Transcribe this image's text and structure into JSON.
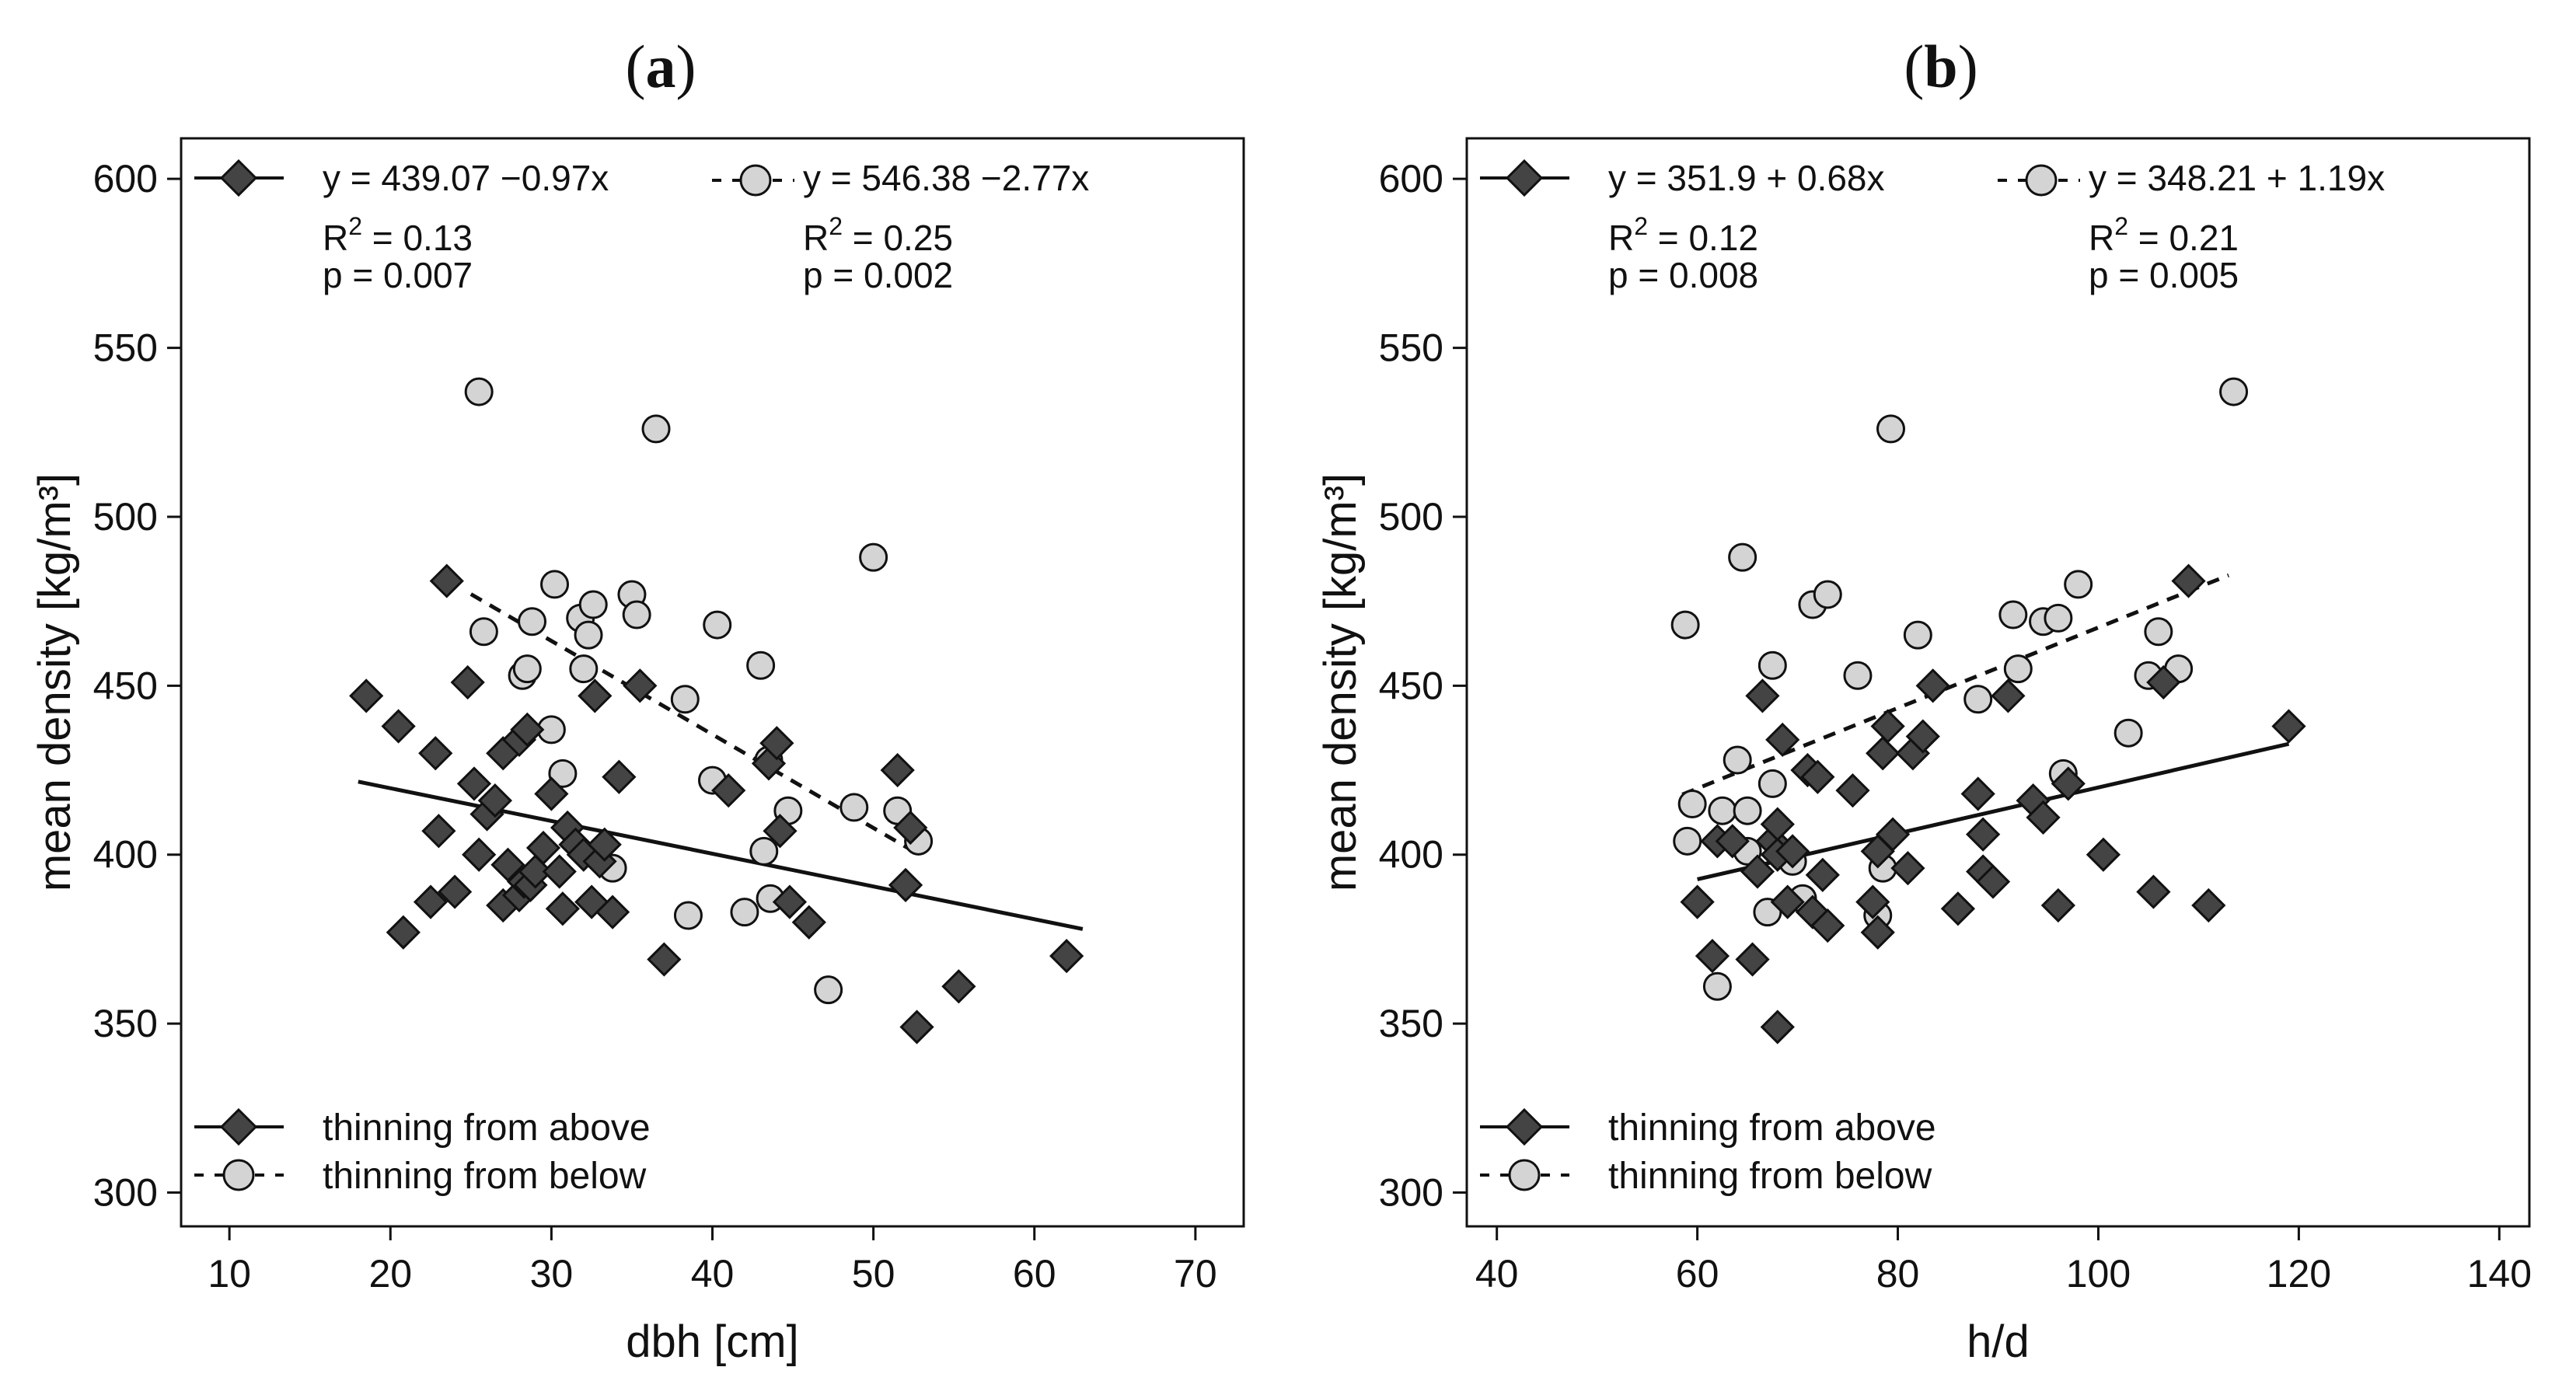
{
  "colors": {
    "above_fill": "#444444",
    "below_fill": "#d4d4d4",
    "stroke": "#111111"
  },
  "chart_data": [
    {
      "type": "scatter",
      "panel_label": "(a)",
      "panel_letter": "a",
      "title": "",
      "xlabel": "dbh [cm]",
      "ylabel": "mean density [kg/m³]",
      "xlim": [
        7,
        73
      ],
      "ylim": [
        290,
        612
      ],
      "xticks": [
        10,
        20,
        30,
        40,
        50,
        60,
        70
      ],
      "yticks": [
        300,
        350,
        400,
        450,
        500,
        550,
        600
      ],
      "legend_position": "bottom-left",
      "series": [
        {
          "name": "thinning from above",
          "legend_label": "thinning from above",
          "marker": "diamond",
          "equation": "y = 439.07 −0.97x",
          "r2_value": "0.13",
          "p_text": "p = 0.007",
          "fit": {
            "x": [
              18,
              63
            ],
            "y": [
              421.6,
              378.0
            ]
          },
          "points": [
            [
              18.5,
              447
            ],
            [
              20.5,
              438
            ],
            [
              20.8,
              377
            ],
            [
              22.5,
              386
            ],
            [
              22.8,
              430
            ],
            [
              23,
              407
            ],
            [
              23.5,
              481
            ],
            [
              24,
              389
            ],
            [
              24.8,
              451
            ],
            [
              25.2,
              421
            ],
            [
              25.5,
              400
            ],
            [
              26,
              412
            ],
            [
              26.5,
              416
            ],
            [
              27,
              385
            ],
            [
              27,
              430
            ],
            [
              27.3,
              397
            ],
            [
              28,
              434
            ],
            [
              28,
              388
            ],
            [
              28.3,
              392
            ],
            [
              28.5,
              437
            ],
            [
              28.7,
              391
            ],
            [
              29,
              395
            ],
            [
              29.5,
              402
            ],
            [
              30,
              418
            ],
            [
              30.5,
              395
            ],
            [
              30.7,
              384
            ],
            [
              31,
              408
            ],
            [
              31.5,
              403
            ],
            [
              32,
              400
            ],
            [
              32.5,
              386
            ],
            [
              32.7,
              447
            ],
            [
              33,
              398
            ],
            [
              33.3,
              403
            ],
            [
              33.8,
              383
            ],
            [
              34.2,
              423
            ],
            [
              35.5,
              450
            ],
            [
              37,
              369
            ],
            [
              41,
              419
            ],
            [
              43.5,
              427
            ],
            [
              44,
              433
            ],
            [
              44.2,
              407
            ],
            [
              44.8,
              386
            ],
            [
              46,
              380
            ],
            [
              51.5,
              425
            ],
            [
              52,
              391
            ],
            [
              52.3,
              408
            ],
            [
              52.7,
              349
            ],
            [
              55.3,
              361
            ],
            [
              62,
              370
            ]
          ]
        },
        {
          "name": "thinning from below",
          "legend_label": "thinning from below",
          "marker": "circle",
          "equation": "y = 546.38 −2.77x",
          "r2_value": "0.25",
          "p_text": "p = 0.002",
          "fit": {
            "x": [
              25,
              53
            ],
            "y": [
              477.1,
              399.6
            ]
          },
          "points": [
            [
              25.5,
              537
            ],
            [
              25.8,
              466
            ],
            [
              28.2,
              453
            ],
            [
              28.5,
              455
            ],
            [
              28.8,
              469
            ],
            [
              30,
              437
            ],
            [
              30.2,
              480
            ],
            [
              30.7,
              424
            ],
            [
              31.8,
              470
            ],
            [
              32,
              455
            ],
            [
              32.3,
              465
            ],
            [
              32.6,
              474
            ],
            [
              33.8,
              396
            ],
            [
              35,
              477
            ],
            [
              35.3,
              471
            ],
            [
              36.5,
              526
            ],
            [
              38.3,
              446
            ],
            [
              38.5,
              382
            ],
            [
              40,
              422
            ],
            [
              40.3,
              468
            ],
            [
              42,
              383
            ],
            [
              43,
              456
            ],
            [
              43.2,
              401
            ],
            [
              43.6,
              387
            ],
            [
              43.5,
              428
            ],
            [
              44.7,
              413
            ],
            [
              47.2,
              360
            ],
            [
              48.8,
              414
            ],
            [
              50,
              488
            ],
            [
              51.5,
              413
            ],
            [
              52.8,
              404
            ]
          ]
        }
      ]
    },
    {
      "type": "scatter",
      "panel_label": "(b)",
      "panel_letter": "b",
      "title": "",
      "xlabel": "h/d",
      "ylabel": "mean density [kg/m³]",
      "xlim": [
        37,
        143
      ],
      "ylim": [
        290,
        612
      ],
      "xticks": [
        40,
        60,
        80,
        100,
        120,
        140
      ],
      "yticks": [
        300,
        350,
        400,
        450,
        500,
        550,
        600
      ],
      "legend_position": "bottom-left",
      "series": [
        {
          "name": "thinning from above",
          "legend_label": "thinning from above",
          "marker": "diamond",
          "equation": "y = 351.9 + 0.68x",
          "r2_value": "0.12",
          "p_text": "p = 0.008",
          "fit": {
            "x": [
              60,
              119
            ],
            "y": [
              392.7,
              432.8
            ]
          },
          "points": [
            [
              60,
              386
            ],
            [
              61.5,
              370
            ],
            [
              62,
              404
            ],
            [
              63.5,
              404
            ],
            [
              65.5,
              369
            ],
            [
              66,
              395
            ],
            [
              66.5,
              447
            ],
            [
              67.5,
              404
            ],
            [
              68,
              349
            ],
            [
              68,
              400
            ],
            [
              68,
              409
            ],
            [
              68.5,
              434
            ],
            [
              69,
              386
            ],
            [
              69.5,
              401
            ],
            [
              71,
              425
            ],
            [
              71.5,
              383
            ],
            [
              72,
              423
            ],
            [
              72.5,
              394
            ],
            [
              73,
              379
            ],
            [
              75.5,
              419
            ],
            [
              77.5,
              386
            ],
            [
              78,
              377
            ],
            [
              78,
              401
            ],
            [
              78.5,
              430
            ],
            [
              79,
              438
            ],
            [
              79.5,
              406
            ],
            [
              81,
              396
            ],
            [
              81.5,
              430
            ],
            [
              82.5,
              435
            ],
            [
              83.5,
              450
            ],
            [
              86,
              384
            ],
            [
              88,
              418
            ],
            [
              88.5,
              395
            ],
            [
              88.5,
              406
            ],
            [
              89.5,
              392
            ],
            [
              91,
              447
            ],
            [
              93.5,
              416
            ],
            [
              94.5,
              411
            ],
            [
              96,
              385
            ],
            [
              97,
              421
            ],
            [
              100.5,
              400
            ],
            [
              105.5,
              389
            ],
            [
              106.5,
              451
            ],
            [
              109,
              481
            ],
            [
              111,
              385
            ],
            [
              119,
              438
            ]
          ]
        },
        {
          "name": "thinning from below",
          "legend_label": "thinning from below",
          "marker": "circle",
          "equation": "y = 348.21 + 1.19x",
          "r2_value": "0.21",
          "p_text": "p = 0.005",
          "fit": {
            "x": [
              58.5,
              113
            ],
            "y": [
              417.8,
              482.7
            ]
          },
          "points": [
            [
              58.8,
              468
            ],
            [
              59,
              404
            ],
            [
              59.5,
              415
            ],
            [
              62,
              361
            ],
            [
              62.5,
              413
            ],
            [
              64,
              428
            ],
            [
              64.5,
              488
            ],
            [
              65,
              413
            ],
            [
              65,
              401
            ],
            [
              67,
              383
            ],
            [
              67.5,
              456
            ],
            [
              67.5,
              421
            ],
            [
              69.5,
              398
            ],
            [
              70.5,
              387
            ],
            [
              71.5,
              474
            ],
            [
              73,
              477
            ],
            [
              76,
              453
            ],
            [
              78,
              382
            ],
            [
              78.5,
              396
            ],
            [
              79.3,
              526
            ],
            [
              82,
              465
            ],
            [
              88,
              446
            ],
            [
              91.5,
              471
            ],
            [
              92,
              455
            ],
            [
              94.5,
              469
            ],
            [
              96,
              470
            ],
            [
              96.5,
              424
            ],
            [
              98,
              480
            ],
            [
              103,
              436
            ],
            [
              105,
              453
            ],
            [
              106,
              466
            ],
            [
              108,
              455
            ],
            [
              113.5,
              537
            ]
          ]
        }
      ]
    }
  ]
}
